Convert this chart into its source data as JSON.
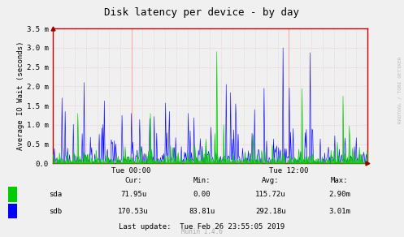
{
  "title": "Disk latency per device - by day",
  "ylabel": "Average IO Wait (seconds)",
  "watermark": "RRDTOOL / TOBI OETIKER",
  "munin_version": "Munin 1.4.6",
  "background_color": "#f0f0f0",
  "plot_bg_color": "#f0f0f0",
  "grid_color": "#e8b8b8",
  "axis_color": "#cc0000",
  "ylim": [
    0,
    0.0035
  ],
  "yticks": [
    0.0,
    0.0005,
    0.001,
    0.0015,
    0.002,
    0.0025,
    0.003,
    0.0035
  ],
  "ytick_labels": [
    "0.0",
    "0.5 m",
    "1.0 m",
    "1.5 m",
    "2.0 m",
    "2.5 m",
    "3.0 m",
    "3.5 m"
  ],
  "xtick_labels": [
    "Tue 00:00",
    "Tue 12:00"
  ],
  "sda_color": "#00cc00",
  "sdb_color": "#0000ff",
  "sdb_fill_color": "#aaaaff",
  "stats_headers": [
    "Cur:",
    "Min:",
    "Avg:",
    "Max:"
  ],
  "sda_stats": [
    "71.95u",
    "0.00",
    "115.72u",
    "2.90m"
  ],
  "sdb_stats": [
    "170.53u",
    "83.81u",
    "292.18u",
    "3.01m"
  ],
  "last_update": "Last update:  Tue Feb 26 23:55:05 2019",
  "n_points": 500,
  "seed": 42
}
